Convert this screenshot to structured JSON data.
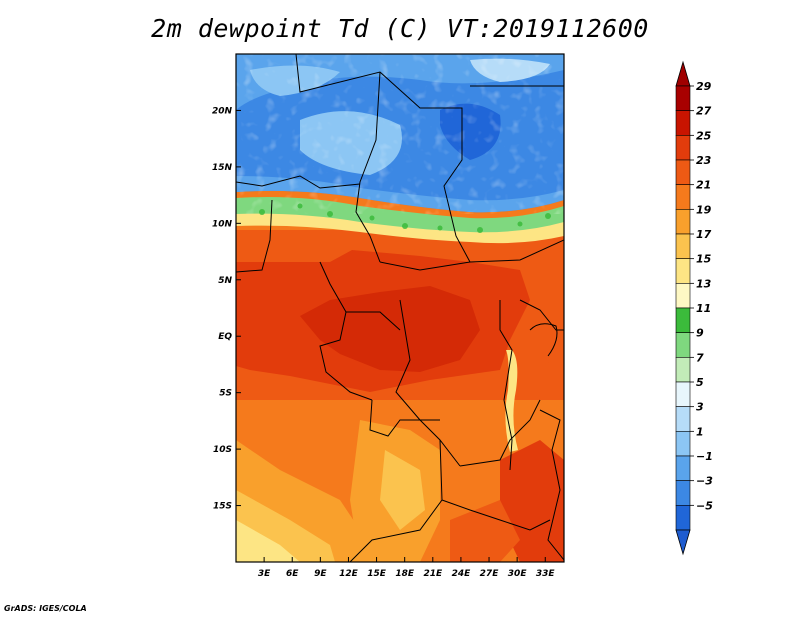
{
  "title": "2m dewpoint Td (C) VT:2019112600",
  "credit": "GrADS: IGES/COLA",
  "map": {
    "lon_range": [
      0,
      35
    ],
    "lat_range": [
      -20,
      25
    ],
    "lon_ticks": [
      {
        "value": 3,
        "label": "3E"
      },
      {
        "value": 6,
        "label": "6E"
      },
      {
        "value": 9,
        "label": "9E"
      },
      {
        "value": 12,
        "label": "12E"
      },
      {
        "value": 15,
        "label": "15E"
      },
      {
        "value": 18,
        "label": "18E"
      },
      {
        "value": 21,
        "label": "21E"
      },
      {
        "value": 24,
        "label": "24E"
      },
      {
        "value": 27,
        "label": "27E"
      },
      {
        "value": 30,
        "label": "30E"
      },
      {
        "value": 33,
        "label": "33E"
      }
    ],
    "lat_ticks": [
      {
        "value": 20,
        "label": "20N"
      },
      {
        "value": 15,
        "label": "15N"
      },
      {
        "value": 10,
        "label": "10N"
      },
      {
        "value": 5,
        "label": "5N"
      },
      {
        "value": 0,
        "label": "EQ"
      },
      {
        "value": -5,
        "label": "5S"
      },
      {
        "value": -10,
        "label": "10S"
      },
      {
        "value": -15,
        "label": "15S"
      }
    ]
  },
  "colorbar": {
    "levels": [
      {
        "label": "29",
        "color": "#a80000"
      },
      {
        "label": "27",
        "color": "#c81400"
      },
      {
        "label": "25",
        "color": "#e23c0c"
      },
      {
        "label": "23",
        "color": "#ee5a14"
      },
      {
        "label": "21",
        "color": "#f57a1c"
      },
      {
        "label": "19",
        "color": "#f9a02c"
      },
      {
        "label": "17",
        "color": "#fbc34e"
      },
      {
        "label": "15",
        "color": "#fde584"
      },
      {
        "label": "13",
        "color": "#fef8c4"
      },
      {
        "label": "11",
        "color": "#3bbb3b"
      },
      {
        "label": "9",
        "color": "#7fd87f"
      },
      {
        "label": "7",
        "color": "#c2ecb8"
      },
      {
        "label": "5",
        "color": "#e8f6fc"
      },
      {
        "label": "3",
        "color": "#b6dcf8"
      },
      {
        "label": "1",
        "color": "#8cc6f4"
      },
      {
        "label": "−1",
        "color": "#5aa4ec"
      },
      {
        "label": "−3",
        "color": "#3c88e4"
      },
      {
        "label": "−5",
        "color": "#2066d8"
      }
    ],
    "top_color": "#a00000",
    "bottom_color": "#1e5cd0"
  }
}
